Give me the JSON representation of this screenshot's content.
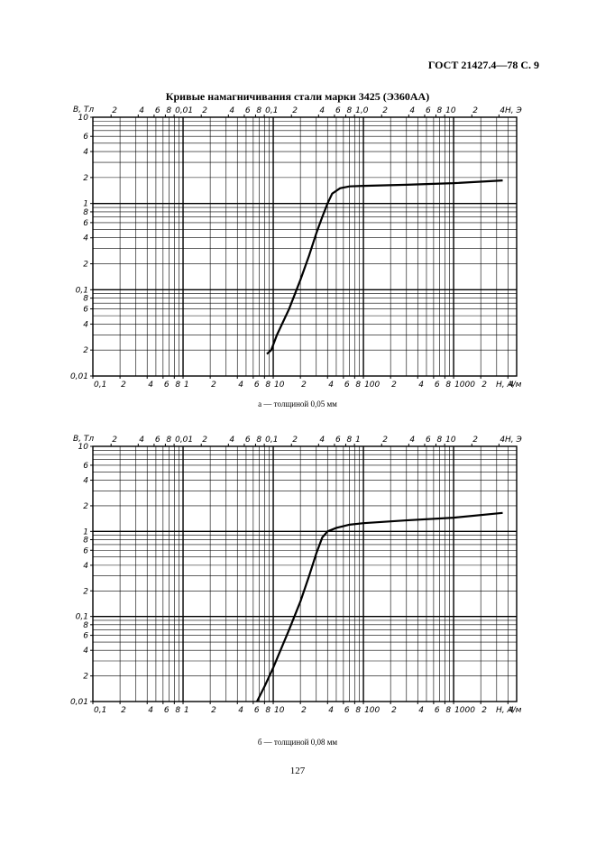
{
  "header": "ГОСТ 21427.4—78 С. 9",
  "page_number": "127",
  "chart_data": [
    {
      "type": "line",
      "title": "Кривые намагничивания стали марки 3425 (Э360АА)",
      "caption": "а — толщиной 0,05 мм",
      "y_label": "B, Тл",
      "x_label": "H, A/м",
      "x2_label": "H, Э",
      "log": true,
      "xlim": [
        0.1,
        5000
      ],
      "ylim": [
        0.01,
        10
      ],
      "x2lim": [
        0.0012566,
        62.83
      ],
      "xticks": [
        {
          "value": 0.1,
          "label": "0,1"
        },
        {
          "value": 0.2,
          "label": "2"
        },
        {
          "value": 0.4,
          "label": "4"
        },
        {
          "value": 0.6,
          "label": "6"
        },
        {
          "value": 0.8,
          "label": "8"
        },
        1,
        {
          "value": 2,
          "label": "2"
        },
        {
          "value": 4,
          "label": "4"
        },
        {
          "value": 6,
          "label": "6"
        },
        {
          "value": 8,
          "label": "8"
        },
        10,
        {
          "value": 20,
          "label": "2"
        },
        {
          "value": 40,
          "label": "4"
        },
        {
          "value": 60,
          "label": "6"
        },
        {
          "value": 80,
          "label": "8"
        },
        100,
        {
          "value": 200,
          "label": "2"
        },
        {
          "value": 400,
          "label": "4"
        },
        {
          "value": 600,
          "label": "6"
        },
        {
          "value": 800,
          "label": "8"
        },
        1000,
        {
          "value": 2000,
          "label": "2"
        },
        {
          "value": 4000,
          "label": "4"
        }
      ],
      "x2ticks": [
        {
          "value": 0.002,
          "label": "2"
        },
        {
          "value": 0.004,
          "label": "4"
        },
        {
          "value": 0.006,
          "label": "6"
        },
        {
          "value": 0.008,
          "label": "8"
        },
        {
          "value": 0.01,
          "label": "0,01"
        },
        {
          "value": 0.02,
          "label": "2"
        },
        {
          "value": 0.04,
          "label": "4"
        },
        {
          "value": 0.06,
          "label": "6"
        },
        {
          "value": 0.08,
          "label": "8"
        },
        {
          "value": 0.1,
          "label": "0,1"
        },
        {
          "value": 0.2,
          "label": "2"
        },
        {
          "value": 0.4,
          "label": "4"
        },
        {
          "value": 0.6,
          "label": "6"
        },
        {
          "value": 0.8,
          "label": "8"
        },
        {
          "value": 1,
          "label": "1,0"
        },
        {
          "value": 2,
          "label": "2"
        },
        {
          "value": 4,
          "label": "4"
        },
        {
          "value": 6,
          "label": "6"
        },
        {
          "value": 8,
          "label": "8"
        },
        10,
        {
          "value": 20,
          "label": "2"
        },
        {
          "value": 40,
          "label": "4"
        }
      ],
      "yticks": [
        {
          "value": 0.01,
          "label": "0,01"
        },
        {
          "value": 0.02,
          "label": "2"
        },
        {
          "value": 0.04,
          "label": "4"
        },
        {
          "value": 0.06,
          "label": "6"
        },
        {
          "value": 0.08,
          "label": "8"
        },
        {
          "value": 0.1,
          "label": "0,1"
        },
        {
          "value": 0.2,
          "label": "2"
        },
        {
          "value": 0.4,
          "label": "4"
        },
        {
          "value": 0.6,
          "label": "6"
        },
        {
          "value": 0.8,
          "label": "8"
        },
        1,
        2,
        4,
        6,
        10
      ],
      "xgrid": [
        0.2,
        0.3,
        0.4,
        0.5,
        0.6,
        0.7,
        0.8,
        0.9,
        1,
        2,
        3,
        4,
        5,
        6,
        7,
        8,
        9,
        10,
        20,
        30,
        40,
        50,
        60,
        70,
        80,
        90,
        100,
        200,
        300,
        400,
        500,
        600,
        700,
        800,
        900,
        1000,
        2000,
        3000,
        4000
      ],
      "ygrid": [
        0.02,
        0.03,
        0.04,
        0.05,
        0.06,
        0.07,
        0.08,
        0.09,
        0.1,
        0.2,
        0.3,
        0.4,
        0.5,
        0.6,
        0.7,
        0.8,
        0.9,
        1,
        2,
        3,
        4,
        5,
        6,
        7,
        8,
        9
      ],
      "series": [
        {
          "color": "#000000",
          "x": [
            8.5,
            9.5,
            11,
            15,
            20,
            25,
            30,
            35,
            40,
            45,
            55,
            70,
            100,
            300,
            1000,
            3500
          ],
          "values": [
            0.018,
            0.02,
            0.03,
            0.06,
            0.13,
            0.25,
            0.45,
            0.7,
            1.0,
            1.3,
            1.5,
            1.58,
            1.6,
            1.65,
            1.72,
            1.85
          ]
        }
      ]
    },
    {
      "type": "line",
      "caption": "б — толщиной 0,08 мм",
      "y_label": "B, Тл",
      "x_label": "H, A/м",
      "x2_label": "H, Э",
      "log": true,
      "xlim": [
        0.1,
        5000
      ],
      "ylim": [
        0.01,
        10
      ],
      "x2lim": [
        0.0012566,
        62.83
      ],
      "xticks": [
        {
          "value": 0.1,
          "label": "0,1"
        },
        {
          "value": 0.2,
          "label": "2"
        },
        {
          "value": 0.4,
          "label": "4"
        },
        {
          "value": 0.6,
          "label": "6"
        },
        {
          "value": 0.8,
          "label": "8"
        },
        1,
        {
          "value": 2,
          "label": "2"
        },
        {
          "value": 4,
          "label": "4"
        },
        {
          "value": 6,
          "label": "6"
        },
        {
          "value": 8,
          "label": "8"
        },
        10,
        {
          "value": 20,
          "label": "2"
        },
        {
          "value": 40,
          "label": "4"
        },
        {
          "value": 60,
          "label": "6"
        },
        {
          "value": 80,
          "label": "8"
        },
        100,
        {
          "value": 200,
          "label": "2"
        },
        {
          "value": 400,
          "label": "4"
        },
        {
          "value": 600,
          "label": "6"
        },
        {
          "value": 800,
          "label": "8"
        },
        1000,
        {
          "value": 2000,
          "label": "2"
        },
        {
          "value": 4000,
          "label": "4"
        }
      ],
      "x2ticks": [
        {
          "value": 0.002,
          "label": "2"
        },
        {
          "value": 0.004,
          "label": "4"
        },
        {
          "value": 0.006,
          "label": "6"
        },
        {
          "value": 0.008,
          "label": "8"
        },
        {
          "value": 0.01,
          "label": "0,01"
        },
        {
          "value": 0.02,
          "label": "2"
        },
        {
          "value": 0.04,
          "label": "4"
        },
        {
          "value": 0.06,
          "label": "6"
        },
        {
          "value": 0.08,
          "label": "8"
        },
        {
          "value": 0.1,
          "label": "0,1"
        },
        {
          "value": 0.2,
          "label": "2"
        },
        {
          "value": 0.4,
          "label": "4"
        },
        {
          "value": 0.6,
          "label": "6"
        },
        {
          "value": 0.8,
          "label": "8"
        },
        {
          "value": 1,
          "label": "1"
        },
        {
          "value": 2,
          "label": "2"
        },
        {
          "value": 4,
          "label": "4"
        },
        {
          "value": 6,
          "label": "6"
        },
        {
          "value": 8,
          "label": "8"
        },
        10,
        {
          "value": 20,
          "label": "2"
        },
        {
          "value": 40,
          "label": "4"
        }
      ],
      "yticks": [
        {
          "value": 0.01,
          "label": "0,01"
        },
        {
          "value": 0.02,
          "label": "2"
        },
        {
          "value": 0.04,
          "label": "4"
        },
        {
          "value": 0.06,
          "label": "6"
        },
        {
          "value": 0.08,
          "label": "8"
        },
        {
          "value": 0.1,
          "label": "0,1"
        },
        {
          "value": 0.2,
          "label": "2"
        },
        {
          "value": 0.4,
          "label": "4"
        },
        {
          "value": 0.6,
          "label": "6"
        },
        {
          "value": 0.8,
          "label": "8"
        },
        1,
        2,
        4,
        6,
        10
      ],
      "xgrid": [
        0.2,
        0.3,
        0.4,
        0.5,
        0.6,
        0.7,
        0.8,
        0.9,
        1,
        2,
        3,
        4,
        5,
        6,
        7,
        8,
        9,
        10,
        20,
        30,
        40,
        50,
        60,
        70,
        80,
        90,
        100,
        200,
        300,
        400,
        500,
        600,
        700,
        800,
        900,
        1000,
        2000,
        3000,
        4000
      ],
      "ygrid": [
        0.02,
        0.03,
        0.04,
        0.05,
        0.06,
        0.07,
        0.08,
        0.09,
        0.1,
        0.2,
        0.3,
        0.4,
        0.5,
        0.6,
        0.7,
        0.8,
        0.9,
        1,
        2,
        3,
        4,
        5,
        6,
        7,
        8,
        9
      ],
      "series": [
        {
          "color": "#000000",
          "x": [
            6.6,
            8,
            10,
            15,
            20,
            25,
            30,
            35,
            40,
            50,
            70,
            100,
            300,
            1000,
            3500
          ],
          "values": [
            0.01,
            0.015,
            0.025,
            0.07,
            0.15,
            0.3,
            0.55,
            0.85,
            1.0,
            1.1,
            1.2,
            1.25,
            1.35,
            1.45,
            1.65
          ]
        }
      ]
    }
  ]
}
